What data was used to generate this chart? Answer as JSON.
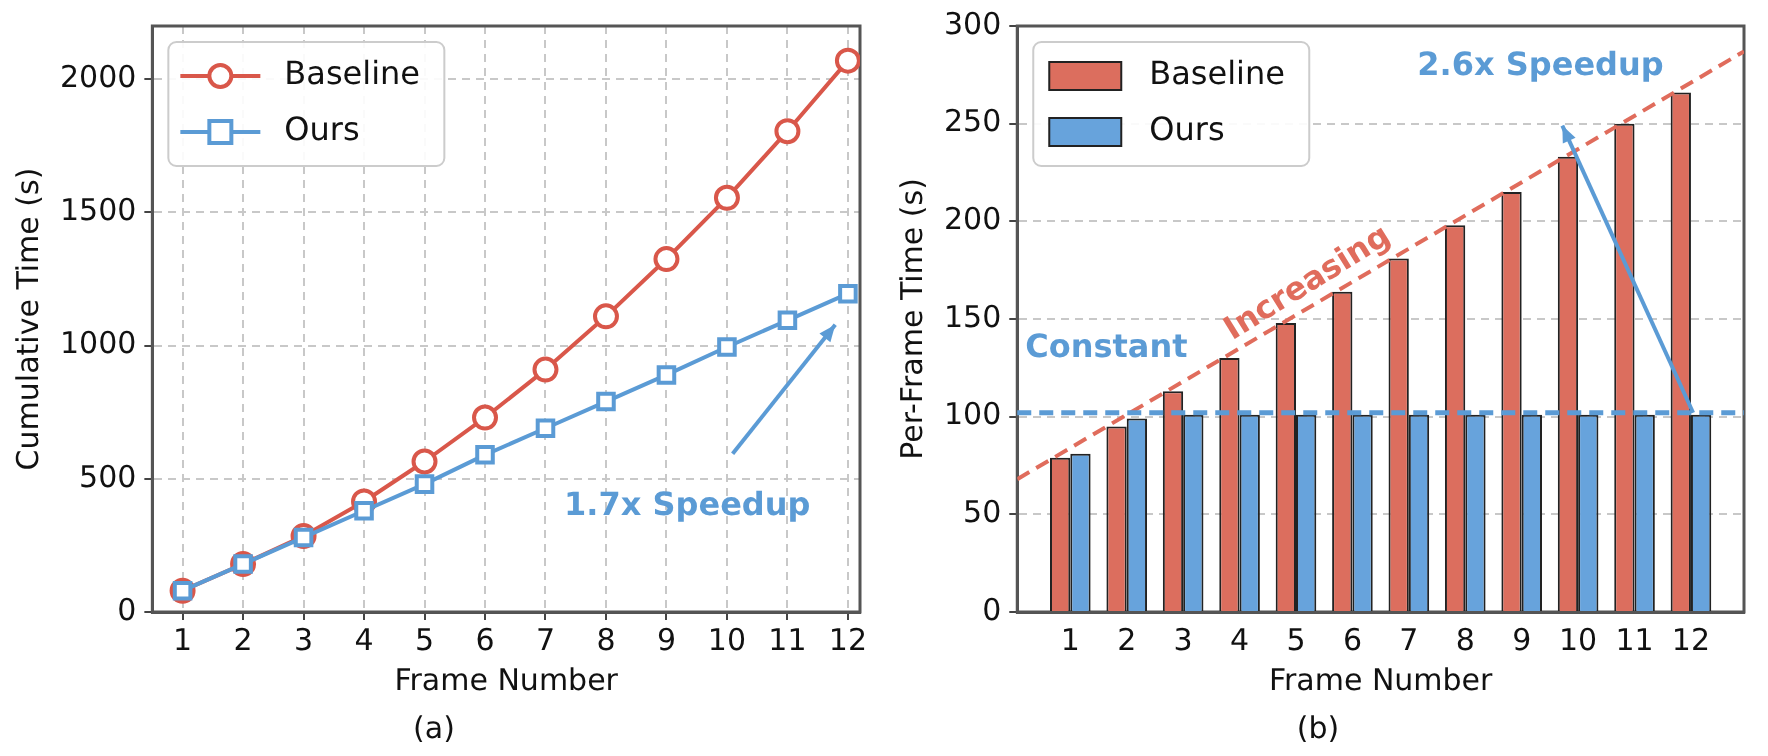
{
  "chart_data": [
    {
      "type": "line",
      "title": "(a)",
      "xlabel": "Frame Number",
      "ylabel": "Cumulative Time (s)",
      "x": [
        1,
        2,
        3,
        4,
        5,
        6,
        7,
        8,
        9,
        10,
        11,
        12
      ],
      "xlim": [
        0.5,
        12.2
      ],
      "xticks": [
        1,
        2,
        3,
        4,
        5,
        6,
        7,
        8,
        9,
        10,
        11,
        12
      ],
      "ylim": [
        0,
        2200
      ],
      "yticks": [
        0,
        500,
        1000,
        1500,
        2000
      ],
      "grid": true,
      "legend": "top left",
      "annotations": [
        "1.7x Speedup"
      ],
      "series": [
        {
          "name": "Baseline",
          "color": "#d9574a",
          "marker": "circle",
          "values": [
            80,
            180,
            285,
            415,
            565,
            730,
            910,
            1110,
            1325,
            1555,
            1805,
            2070
          ]
        },
        {
          "name": "Ours",
          "color": "#5b9bd5",
          "marker": "square",
          "values": [
            80,
            180,
            280,
            380,
            480,
            590,
            690,
            790,
            890,
            995,
            1095,
            1195
          ]
        }
      ]
    },
    {
      "type": "bar",
      "title": "(b)",
      "xlabel": "Frame Number",
      "ylabel": "Per-Frame Time (s)",
      "x": [
        1,
        2,
        3,
        4,
        5,
        6,
        7,
        8,
        9,
        10,
        11,
        12
      ],
      "xlim": [
        0.06,
        12.94
      ],
      "xticks": [
        1,
        2,
        3,
        4,
        5,
        6,
        7,
        8,
        9,
        10,
        11,
        12
      ],
      "ylim": [
        0,
        300
      ],
      "yticks": [
        0,
        50,
        100,
        150,
        200,
        250,
        300
      ],
      "grid": "y",
      "legend": "top left",
      "annotations": [
        "Increasing",
        "2.6x Speedup"
      ],
      "ref_lines": [
        {
          "axis": "y",
          "value": 102,
          "label": "Constant",
          "color": "#5b9bd5",
          "line_style": "dashed"
        }
      ],
      "series": [
        {
          "name": "Baseline",
          "color": "#dc6e5e",
          "values": [
            79,
            95,
            113,
            130,
            148,
            164,
            181,
            198,
            215,
            233,
            250,
            266
          ]
        },
        {
          "name": "Ours",
          "color": "#67a3dc",
          "values": [
            81,
            99,
            101,
            101,
            101,
            101,
            101,
            101,
            101,
            101,
            101,
            101
          ]
        },
        {
          "type": "line",
          "color": "#e06c5c",
          "line_style": "dashed",
          "marker": "none",
          "x": [
            0.06,
            12.94
          ],
          "values": [
            68,
            287
          ]
        }
      ]
    }
  ]
}
